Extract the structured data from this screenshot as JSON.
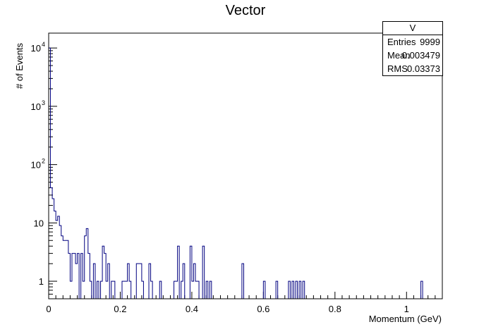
{
  "chart_data": {
    "type": "histogram",
    "title": "Vector",
    "xlabel": "Momentum (GeV)",
    "ylabel": "# of Events",
    "ylog": true,
    "xlim": [
      0,
      1.1
    ],
    "ylim": [
      0.5,
      18000
    ],
    "bin_width": 0.005,
    "x_ticks": [
      {
        "value": 0,
        "label": "0"
      },
      {
        "value": 0.2,
        "label": "0.2"
      },
      {
        "value": 0.4,
        "label": "0.4"
      },
      {
        "value": 0.6,
        "label": "0.6"
      },
      {
        "value": 0.8,
        "label": "0.8"
      },
      {
        "value": 1.0,
        "label": "1"
      }
    ],
    "y_ticks": [
      {
        "value": 1,
        "label": "1"
      },
      {
        "value": 10,
        "label": "10"
      },
      {
        "value": 100,
        "label": "10",
        "exp": "2"
      },
      {
        "value": 1000,
        "label": "10",
        "exp": "3"
      },
      {
        "value": 10000,
        "label": "10",
        "exp": "4"
      }
    ],
    "line_color": "#000080",
    "bin_counts": [
      10000,
      40,
      26,
      16,
      11,
      13,
      9,
      6,
      5,
      5,
      5,
      3,
      1,
      3,
      3,
      2,
      3,
      0,
      3,
      1,
      6,
      8,
      3,
      1,
      0,
      2,
      0,
      1,
      0,
      1,
      4,
      3,
      1,
      2,
      0,
      1,
      1,
      0,
      0,
      0,
      0,
      1,
      1,
      1,
      2,
      1,
      0,
      0,
      0,
      2,
      2,
      2,
      1,
      0,
      0,
      0,
      2,
      1,
      0,
      0,
      0,
      0,
      1,
      0,
      0,
      0,
      0,
      0,
      0,
      0,
      1,
      1,
      4,
      0,
      1,
      2,
      0,
      0,
      0,
      0,
      1,
      0,
      1,
      1,
      0,
      0,
      4,
      0,
      1,
      0,
      0,
      0,
      0,
      0,
      0,
      0,
      0,
      0,
      0,
      0,
      0,
      0,
      0,
      0,
      0,
      0,
      0,
      0,
      2,
      0,
      0,
      0,
      0,
      0,
      0,
      0,
      0,
      0,
      0,
      0,
      0,
      0,
      0,
      0,
      0,
      0,
      0,
      0,
      0,
      0,
      0,
      0,
      0,
      0,
      0,
      0,
      0,
      0,
      0,
      0,
      0,
      0,
      0,
      0,
      0,
      0,
      0,
      0,
      0,
      0,
      0,
      0,
      0,
      0,
      0,
      0,
      0,
      0,
      0,
      0,
      0,
      0,
      0,
      0,
      0,
      0,
      0,
      0,
      0,
      0,
      0,
      0,
      0,
      0,
      0,
      0,
      0,
      0,
      0,
      0,
      0,
      0,
      0,
      0,
      0,
      0,
      0,
      0,
      0,
      0,
      0,
      0,
      0,
      0,
      0,
      0,
      0,
      0,
      0,
      0,
      0,
      0,
      0,
      0,
      0,
      0,
      0,
      0,
      0,
      0,
      0,
      0,
      0,
      0,
      0,
      0,
      0,
      0,
      0,
      0
    ],
    "bins_nonzero": [
      {
        "x": 0.095,
        "count": 0
      },
      {
        "x": 0.5,
        "count": 0
      }
    ],
    "sparse_bins": [
      {
        "x": 0.26,
        "count": 0
      }
    ],
    "extra_bins": [
      {
        "x": 0.395,
        "count": 4
      },
      {
        "x": 0.405,
        "count": 2
      },
      {
        "x": 0.43,
        "count": 4
      },
      {
        "x": 0.45,
        "count": 1
      },
      {
        "x": 0.54,
        "count": 2
      },
      {
        "x": 0.6,
        "count": 1
      },
      {
        "x": 0.635,
        "count": 1
      },
      {
        "x": 0.67,
        "count": 1
      },
      {
        "x": 0.68,
        "count": 1
      },
      {
        "x": 0.69,
        "count": 1
      },
      {
        "x": 0.7,
        "count": 1
      },
      {
        "x": 0.71,
        "count": 1
      },
      {
        "x": 1.04,
        "count": 1
      }
    ]
  },
  "stats": {
    "name": "V",
    "rows": [
      {
        "label": "Entries",
        "value": "9999"
      },
      {
        "label": "Mean",
        "value": "0.003479"
      },
      {
        "label": "RMS",
        "value": "0.03373"
      }
    ]
  }
}
